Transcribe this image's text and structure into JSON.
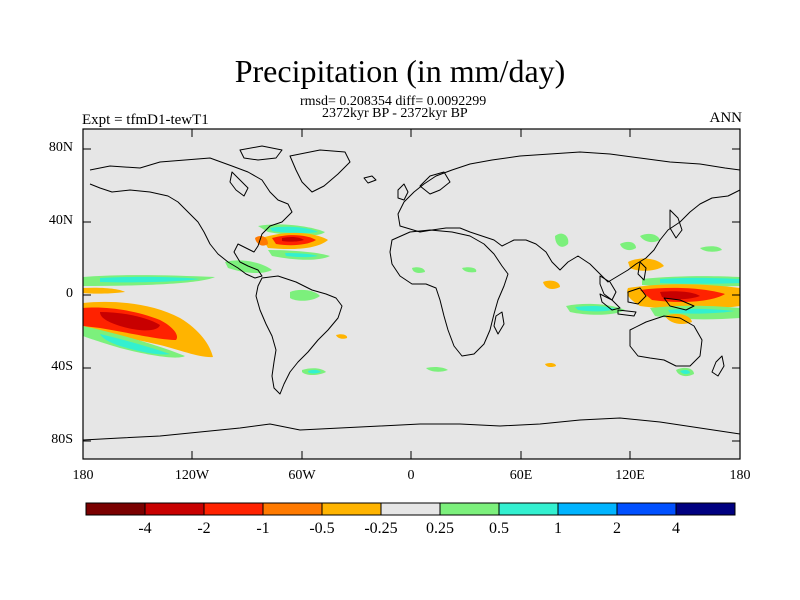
{
  "title": "Precipitation (in mm/day)",
  "stats_line": "rmsd= 0.208354 diff= 0.0092299",
  "period_line": "2372kyr BP - 2372kyr BP",
  "experiment": "Expt = tfmD1-tewT1",
  "season": "ANN",
  "lat_ticks": [
    "80N",
    "40N",
    "0",
    "40S",
    "80S"
  ],
  "lon_ticks": [
    "180",
    "120W",
    "60W",
    "0",
    "60E",
    "120E",
    "180"
  ],
  "colorbar": {
    "labels": [
      "-4",
      "-2",
      "-1",
      "-0.5",
      "-0.25",
      "0.25",
      "0.5",
      "1",
      "2",
      "4"
    ],
    "colors": [
      "#7a0000",
      "#c80000",
      "#ff2200",
      "#ff7a00",
      "#ffb400",
      "#e6e6e6",
      "#7cf07c",
      "#33f0d0",
      "#00b4ff",
      "#0050ff",
      "#000080"
    ]
  },
  "colors": {
    "ocean_bg": "#e6e6e6",
    "coast": "#000000"
  }
}
